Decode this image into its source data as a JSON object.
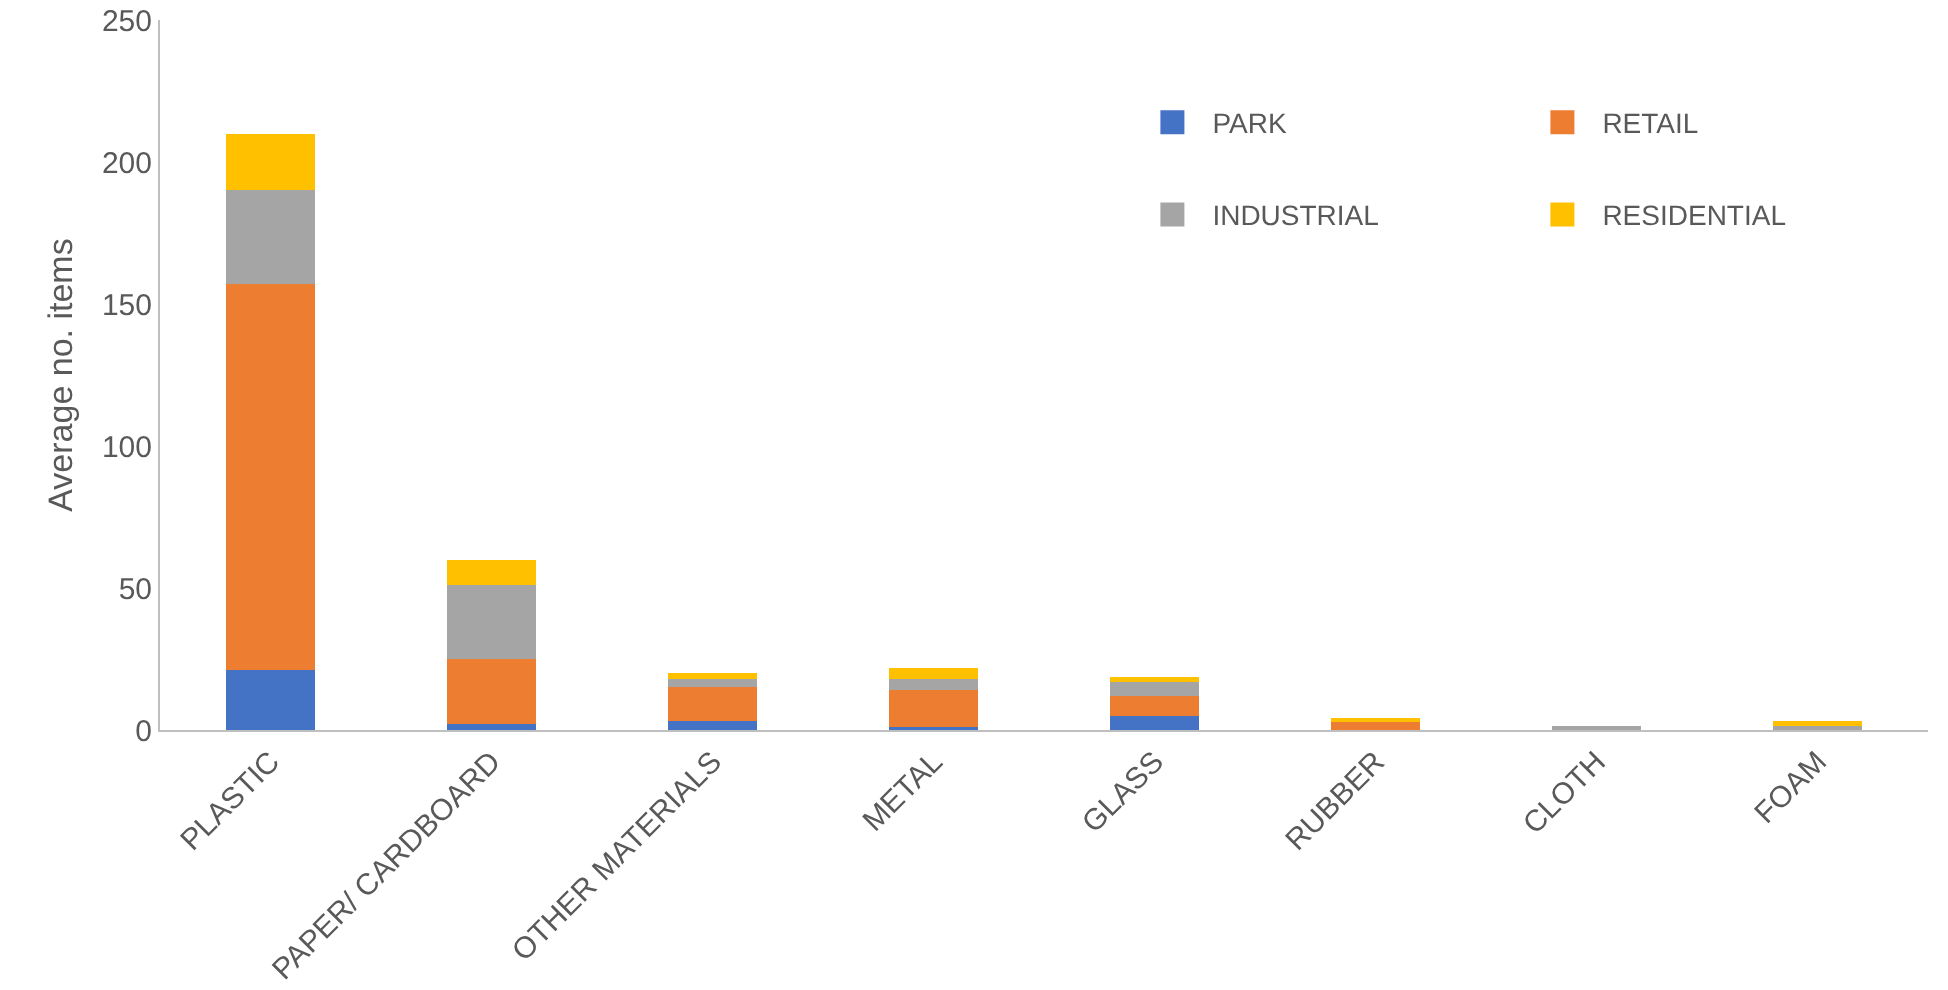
{
  "chart_data": {
    "type": "bar",
    "stacked": true,
    "ylabel": "Average no. items",
    "categories": [
      "PLASTIC",
      "PAPER/ CARDBOARD",
      "OTHER MATERIALS",
      "METAL",
      "GLASS",
      "RUBBER",
      "CLOTH",
      "FOAM"
    ],
    "series": [
      {
        "name": "PARK",
        "color": "#4472c4",
        "values": [
          21,
          2,
          3,
          1,
          5,
          null,
          null,
          null
        ]
      },
      {
        "name": "RETAIL",
        "color": "#ed7d31",
        "values": [
          136,
          23,
          12,
          13,
          7,
          3,
          null,
          null
        ]
      },
      {
        "name": "INDUSTRIAL",
        "color": "#a5a5a5",
        "values": [
          33,
          26,
          3,
          4,
          5,
          null,
          1.5,
          1.5
        ]
      },
      {
        "name": "RESIDENTIAL",
        "color": "#ffc000",
        "values": [
          20,
          9,
          2,
          4,
          1.5,
          1,
          null,
          1.5
        ]
      }
    ],
    "ylim": [
      0,
      250
    ],
    "yticks": [
      0,
      50,
      100,
      150,
      200,
      250
    ],
    "grid": false,
    "legend": "top right"
  }
}
